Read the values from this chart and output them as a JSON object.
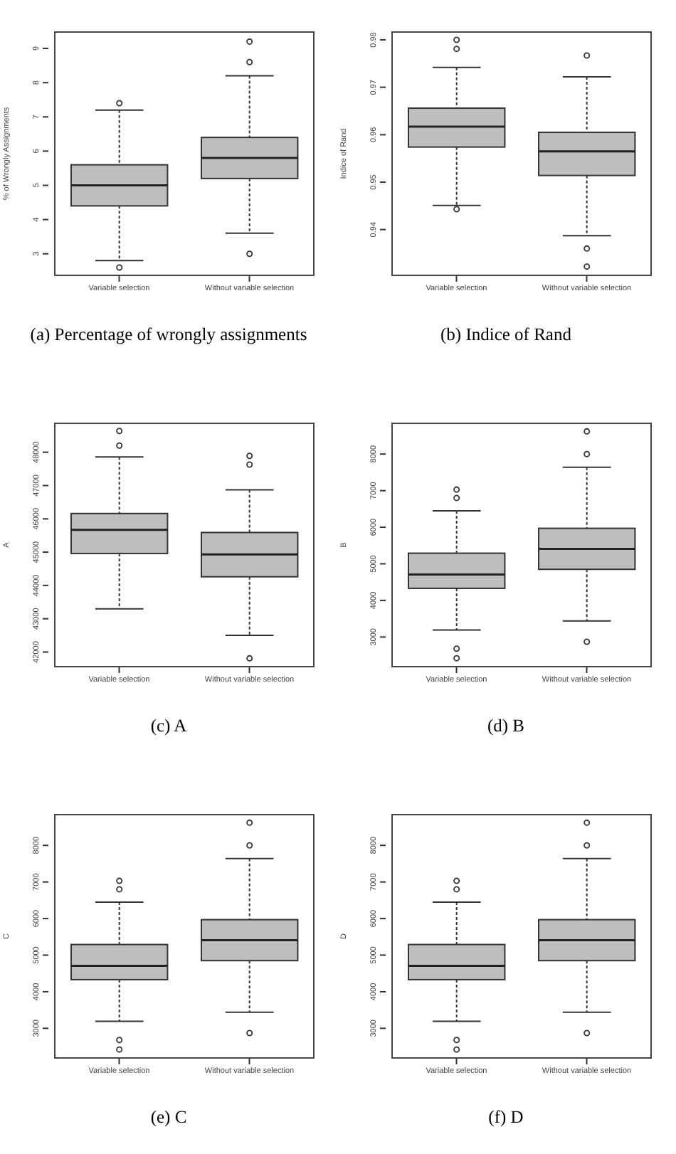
{
  "chart_data": [
    {
      "type": "box",
      "title": "(a) Percentage of wrongly assignments",
      "ylabel": "% of Wrongly Assignments",
      "categories": [
        "Variable selection",
        "Without variable selection"
      ],
      "color": "#bebebe",
      "ylim": [
        2.35,
        9.5
      ],
      "yticks": [
        3,
        4,
        5,
        6,
        7,
        8,
        9
      ],
      "boxes": [
        {
          "low": 2.8,
          "q1": 4.4,
          "median": 5.0,
          "q3": 5.6,
          "high": 7.2,
          "outliers": [
            7.4,
            2.6
          ]
        },
        {
          "low": 3.6,
          "q1": 5.2,
          "median": 5.8,
          "q3": 6.4,
          "high": 8.2,
          "outliers": [
            9.2,
            8.6,
            3.0
          ]
        }
      ]
    },
    {
      "type": "box",
      "title": "(b) Indice of Rand",
      "ylabel": "Indice of Rand",
      "categories": [
        "Variable selection",
        "Without variable selection"
      ],
      "color": "#bebebe",
      "ylim": [
        0.9302,
        0.9818
      ],
      "yticks": [
        0.94,
        0.95,
        0.96,
        0.97,
        0.98
      ],
      "boxes": [
        {
          "low": 0.9451,
          "q1": 0.9574,
          "median": 0.9617,
          "q3": 0.9656,
          "high": 0.9742,
          "outliers": [
            0.98,
            0.9781,
            0.9443
          ]
        },
        {
          "low": 0.9387,
          "q1": 0.9514,
          "median": 0.9565,
          "q3": 0.9605,
          "high": 0.9722,
          "outliers": [
            0.9767,
            0.936,
            0.9322
          ]
        }
      ]
    },
    {
      "type": "box",
      "title": "(c) A",
      "ylabel": "A",
      "categories": [
        "Variable selection",
        "Without variable selection"
      ],
      "color": "#bebebe",
      "ylim": [
        41540,
        48890
      ],
      "yticks": [
        42000,
        43000,
        44000,
        45000,
        46000,
        47000,
        48000
      ],
      "boxes": [
        {
          "low": 43300,
          "q1": 44960,
          "median": 45670,
          "q3": 46160,
          "high": 47860,
          "outliers": [
            48640,
            48200
          ]
        },
        {
          "low": 42500,
          "q1": 44260,
          "median": 44930,
          "q3": 45590,
          "high": 46870,
          "outliers": [
            47890,
            47630,
            41810
          ]
        }
      ]
    },
    {
      "type": "box",
      "title": "(d) B",
      "ylabel": "B",
      "categories": [
        "Variable selection",
        "Without variable selection"
      ],
      "color": "#bebebe",
      "ylim": [
        2170,
        8860
      ],
      "yticks": [
        3000,
        4000,
        5000,
        6000,
        7000,
        8000
      ],
      "boxes": [
        {
          "low": 3190,
          "q1": 4330,
          "median": 4710,
          "q3": 5290,
          "high": 6450,
          "outliers": [
            7030,
            6800,
            2680,
            2420
          ]
        },
        {
          "low": 3440,
          "q1": 4850,
          "median": 5410,
          "q3": 5970,
          "high": 7640,
          "outliers": [
            8620,
            8000,
            2870
          ]
        }
      ]
    },
    {
      "type": "box",
      "title": "(e) C",
      "ylabel": "C",
      "categories": [
        "Variable selection",
        "Without variable selection"
      ],
      "color": "#bebebe",
      "ylim": [
        2170,
        8860
      ],
      "yticks": [
        3000,
        4000,
        5000,
        6000,
        7000,
        8000
      ],
      "boxes": [
        {
          "low": 3190,
          "q1": 4330,
          "median": 4710,
          "q3": 5290,
          "high": 6450,
          "outliers": [
            7030,
            6800,
            2680,
            2420
          ]
        },
        {
          "low": 3440,
          "q1": 4850,
          "median": 5410,
          "q3": 5970,
          "high": 7640,
          "outliers": [
            8620,
            8000,
            2870
          ]
        }
      ]
    },
    {
      "type": "box",
      "title": "(f) D",
      "ylabel": "D",
      "categories": [
        "Variable selection",
        "Without variable selection"
      ],
      "color": "#bebebe",
      "ylim": [
        2170,
        8860
      ],
      "yticks": [
        3000,
        4000,
        5000,
        6000,
        7000,
        8000
      ],
      "boxes": [
        {
          "low": 3190,
          "q1": 4330,
          "median": 4710,
          "q3": 5290,
          "high": 6450,
          "outliers": [
            7030,
            6800,
            2680,
            2420
          ]
        },
        {
          "low": 3440,
          "q1": 4850,
          "median": 5410,
          "q3": 5970,
          "high": 7640,
          "outliers": [
            8620,
            8000,
            2870
          ]
        }
      ]
    }
  ]
}
